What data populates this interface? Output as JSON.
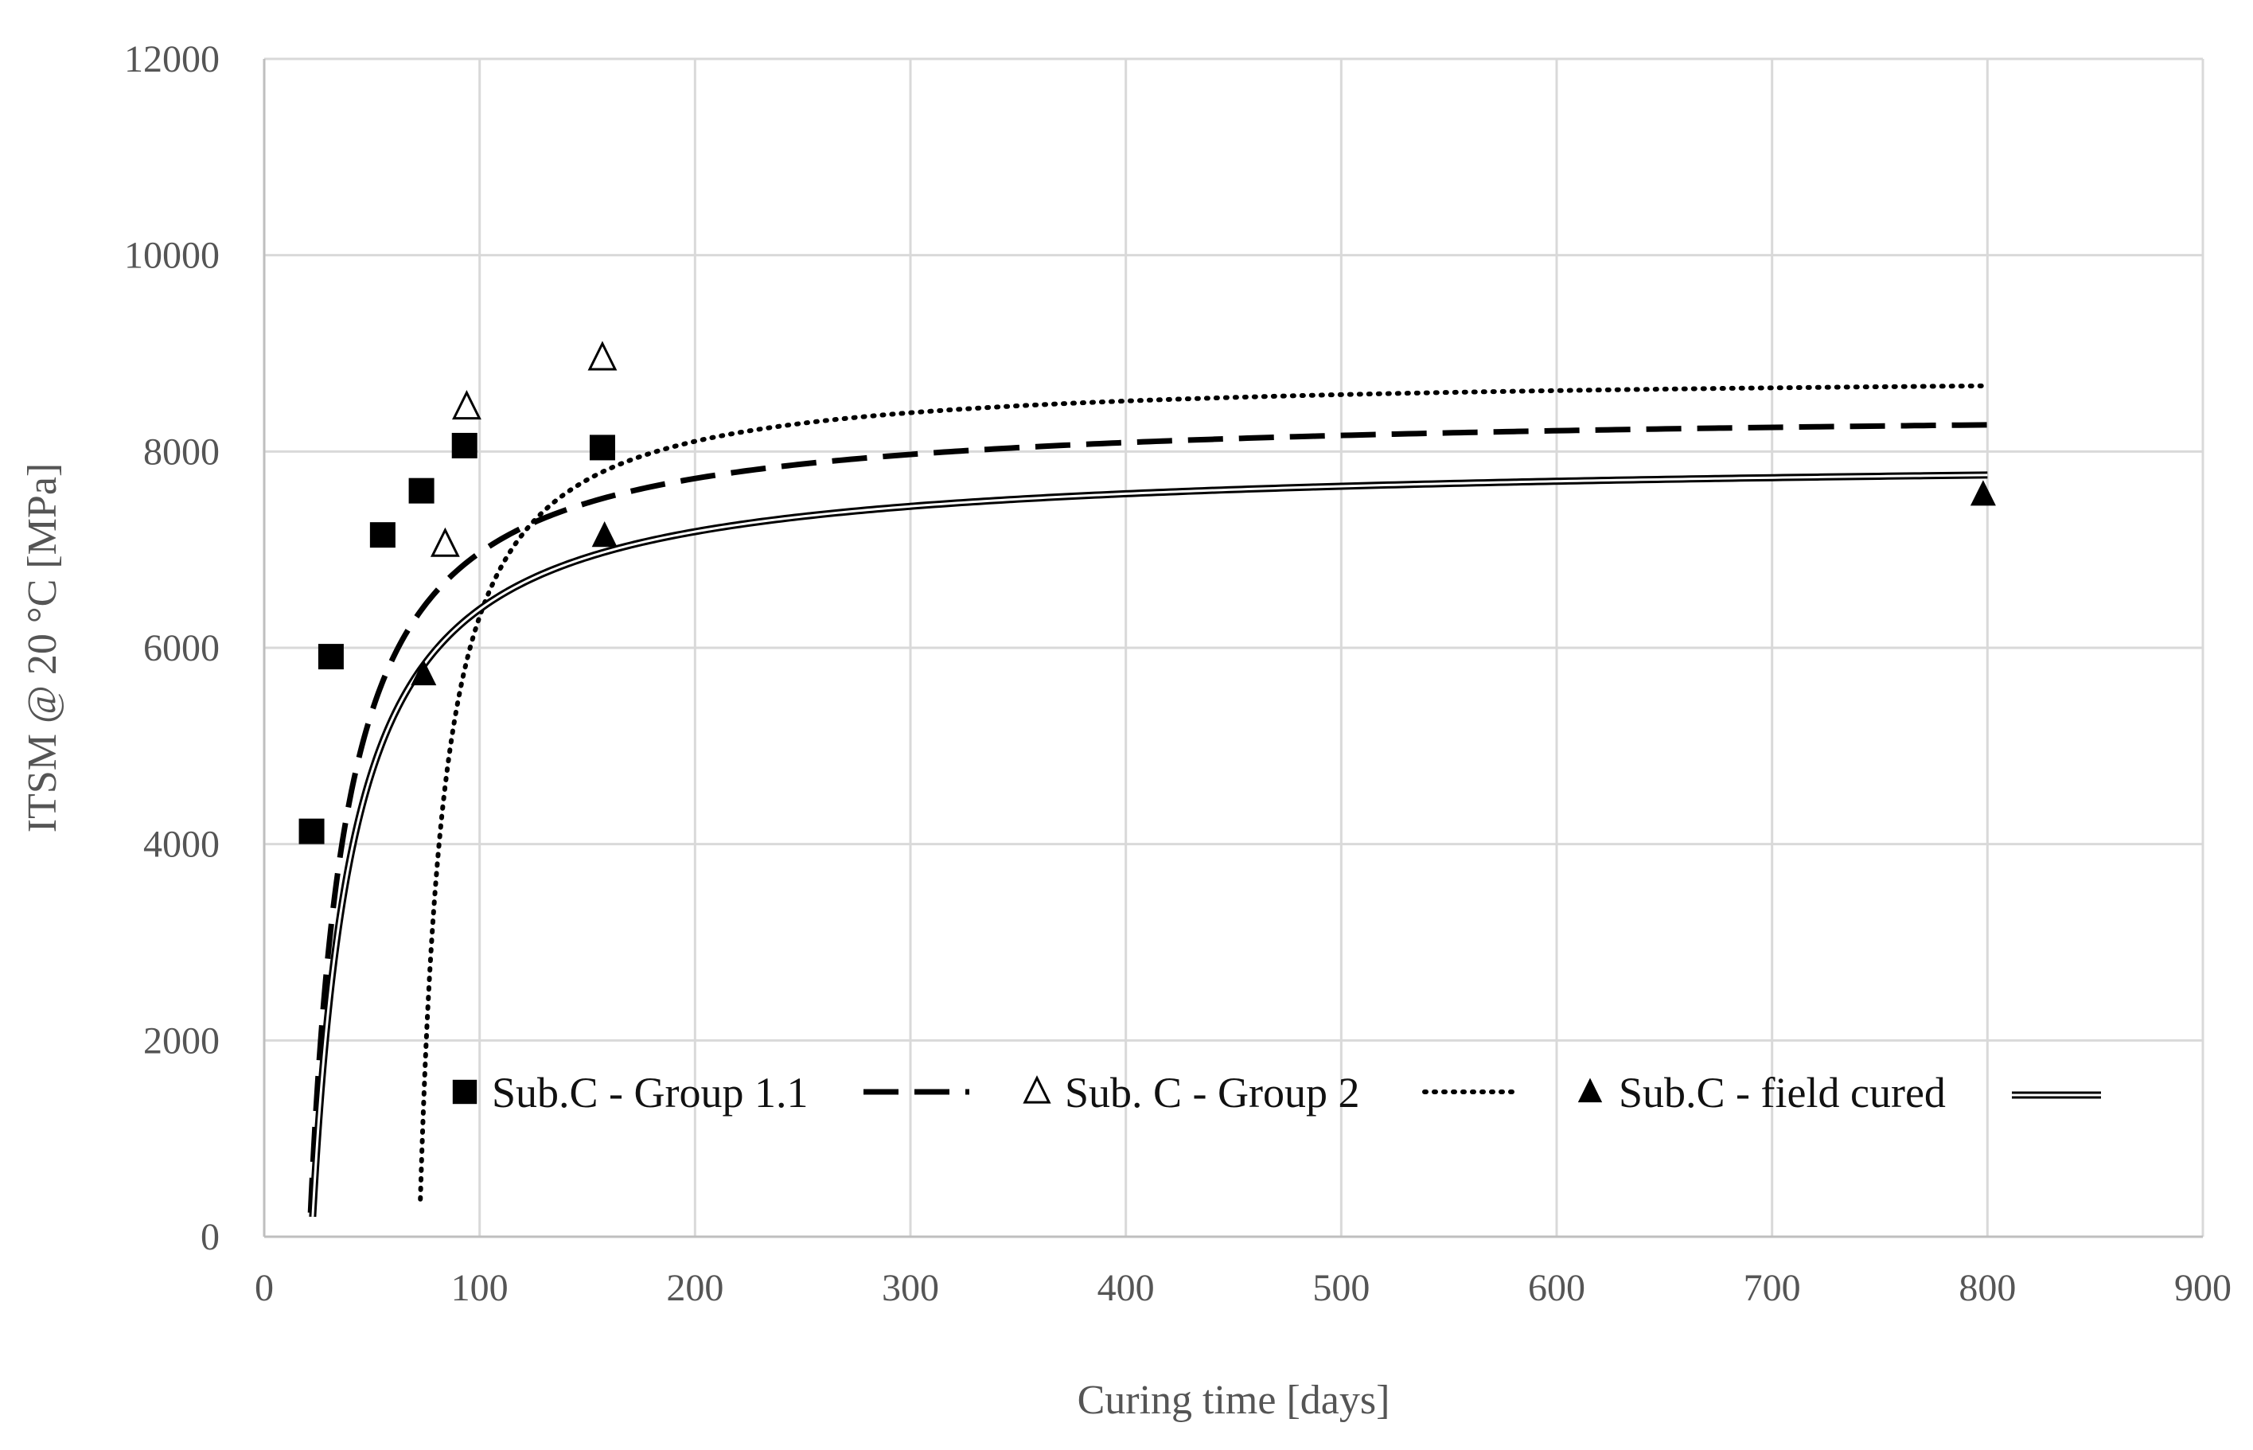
{
  "chart_data": {
    "type": "scatter",
    "title": "",
    "xlabel": "Curing time [days]",
    "ylabel": "ITSM @ 20 °C [MPa]",
    "xlim": [
      0,
      900
    ],
    "ylim": [
      0,
      12000
    ],
    "xticks": [
      0,
      100,
      200,
      300,
      400,
      500,
      600,
      700,
      800,
      900
    ],
    "yticks": [
      0,
      2000,
      4000,
      6000,
      8000,
      10000,
      12000
    ],
    "xtick_labels": [
      "0",
      "100",
      "200",
      "300",
      "400",
      "500",
      "600",
      "700",
      "800",
      "900"
    ],
    "ytick_labels": [
      "0",
      "2000",
      "4000",
      "6000",
      "8000",
      "10000",
      "12000"
    ],
    "grid": true,
    "legend_position": "inside-bottom",
    "series": [
      {
        "name": "Sub.C - Group 1.1",
        "marker": "square-filled",
        "line_style": "long-dash",
        "x": [
          22,
          31,
          55,
          73,
          93,
          157
        ],
        "y": [
          4130,
          5910,
          7150,
          7600,
          8060,
          8040
        ],
        "trend": {
          "plateau": 8450,
          "k": 16.8,
          "x0": 21,
          "x_end": 800
        }
      },
      {
        "name": "Sub. C - Group 2",
        "marker": "triangle-open",
        "line_style": "dotted",
        "x": [
          84,
          94,
          157
        ],
        "y": [
          7050,
          8450,
          8950
        ],
        "trend": {
          "plateau": 8800,
          "k": 11.0,
          "x0": 72,
          "x_end": 800
        }
      },
      {
        "name": "Sub.C - field cured",
        "marker": "triangle-filled",
        "line_style": "double",
        "x": [
          74,
          158,
          798
        ],
        "y": [
          5730,
          7140,
          7560
        ],
        "trend": {
          "plateau": 7950,
          "k": 19.0,
          "x0": 22,
          "x_end": 800
        }
      }
    ]
  }
}
